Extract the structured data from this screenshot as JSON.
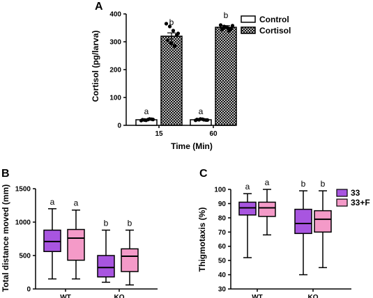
{
  "colors": {
    "axis": "#000000",
    "control": "#ffffff",
    "cortisol_pattern": "#000000",
    "purple": "#a855e0",
    "pink": "#f49ac8"
  },
  "chart_data": [
    {
      "panel": "A",
      "type": "bar",
      "xlabel": "Time (Min)",
      "ylabel": "Cortisol (pg/larva)",
      "ylim": [
        0,
        400
      ],
      "yticks": [
        "0",
        "100",
        "200",
        "300",
        "400"
      ],
      "categories": [
        "15",
        "60"
      ],
      "legend_position": "top-right",
      "series": [
        {
          "name": "Control",
          "values": [
            20,
            20
          ],
          "error": [
            3,
            3
          ],
          "letters": [
            "a",
            "a"
          ],
          "points": [
            [
              17,
              19,
              21,
              22,
              20,
              18,
              23,
              21
            ],
            [
              18,
              20,
              22,
              19,
              21,
              23,
              20,
              19
            ]
          ]
        },
        {
          "name": "Cortisol",
          "values": [
            320,
            352
          ],
          "error": [
            12,
            6
          ],
          "letters": [
            "b",
            "b"
          ],
          "points": [
            [
              365,
              355,
              340,
              325,
              305,
              295,
              285,
              330
            ],
            [
              360,
              355,
              350,
              348,
              345,
              352,
              340,
              358
            ]
          ]
        }
      ]
    },
    {
      "panel": "B",
      "type": "box",
      "ylabel": "Total distance moved (mm)",
      "ylim": [
        0,
        1500
      ],
      "yticks": [
        "0",
        "500",
        "1000",
        "1500"
      ],
      "categories": [
        "WT",
        "KO"
      ],
      "series": [
        {
          "color": "purple",
          "boxes": [
            {
              "min": 150,
              "q1": 560,
              "median": 710,
              "q3": 880,
              "max": 1200,
              "letter": "a"
            },
            {
              "min": 100,
              "q1": 180,
              "median": 320,
              "q3": 500,
              "max": 880,
              "letter": "b"
            }
          ]
        },
        {
          "color": "pink",
          "boxes": [
            {
              "min": 150,
              "q1": 430,
              "median": 760,
              "q3": 890,
              "max": 1180,
              "letter": "a"
            },
            {
              "min": 60,
              "q1": 260,
              "median": 490,
              "q3": 600,
              "max": 880,
              "letter": "b"
            }
          ]
        }
      ]
    },
    {
      "panel": "C",
      "type": "box",
      "ylabel": "Thigmotaxis (%)",
      "ylim": [
        30,
        100
      ],
      "yticks": [
        "30",
        "40",
        "50",
        "60",
        "70",
        "80",
        "90",
        "100"
      ],
      "categories": [
        "WT",
        "KO"
      ],
      "legend_position": "top-right",
      "series": [
        {
          "name": "33",
          "color": "purple",
          "boxes": [
            {
              "min": 52,
              "q1": 82,
              "median": 87,
              "q3": 91,
              "max": 97,
              "letter": "a"
            },
            {
              "min": 40,
              "q1": 69,
              "median": 76,
              "q3": 86,
              "max": 99,
              "letter": "b"
            }
          ]
        },
        {
          "name": "33+F",
          "color": "pink",
          "boxes": [
            {
              "min": 68,
              "q1": 81,
              "median": 87,
              "q3": 91,
              "max": 100,
              "letter": "a"
            },
            {
              "min": 45,
              "q1": 70,
              "median": 79,
              "q3": 85,
              "max": 99,
              "letter": "b"
            }
          ]
        }
      ]
    }
  ]
}
